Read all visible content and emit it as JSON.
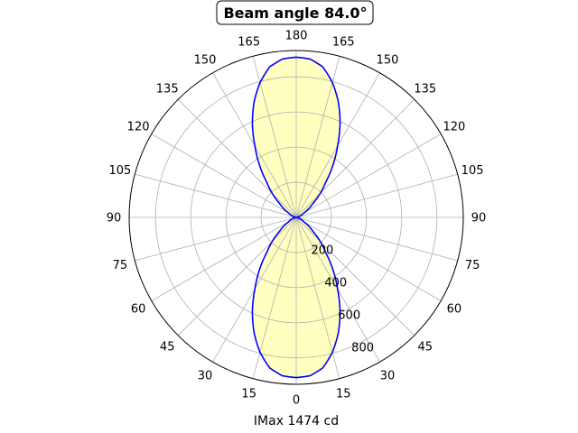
{
  "chart_data": {
    "type": "polar",
    "title": "Beam angle 84.0°",
    "xlabel": "IMax 1474 cd",
    "angle_tick_labels": [
      "0",
      "15",
      "30",
      "45",
      "60",
      "75",
      "90",
      "105",
      "120",
      "135",
      "150",
      "165",
      "180",
      "165",
      "150",
      "135",
      "120",
      "105",
      "90",
      "75",
      "60",
      "45",
      "30",
      "15"
    ],
    "radial_tick_labels": [
      "200",
      "400",
      "600",
      "800"
    ],
    "radial_ticks": [
      200,
      400,
      600,
      800
    ],
    "rmax": 950,
    "grid": true,
    "series": [
      {
        "line_color": "#0000ff",
        "fill_color": "#ffffc0",
        "points": [
          {
            "angle": 0,
            "value": 912
          },
          {
            "angle": 5,
            "value": 905
          },
          {
            "angle": 10,
            "value": 870
          },
          {
            "angle": 15,
            "value": 795
          },
          {
            "angle": 20,
            "value": 700
          },
          {
            "angle": 25,
            "value": 590
          },
          {
            "angle": 30,
            "value": 470
          },
          {
            "angle": 40,
            "value": 260
          },
          {
            "angle": 50,
            "value": 125
          },
          {
            "angle": 60,
            "value": 50
          },
          {
            "angle": 75,
            "value": 8
          },
          {
            "angle": 90,
            "value": 0
          }
        ]
      }
    ]
  }
}
